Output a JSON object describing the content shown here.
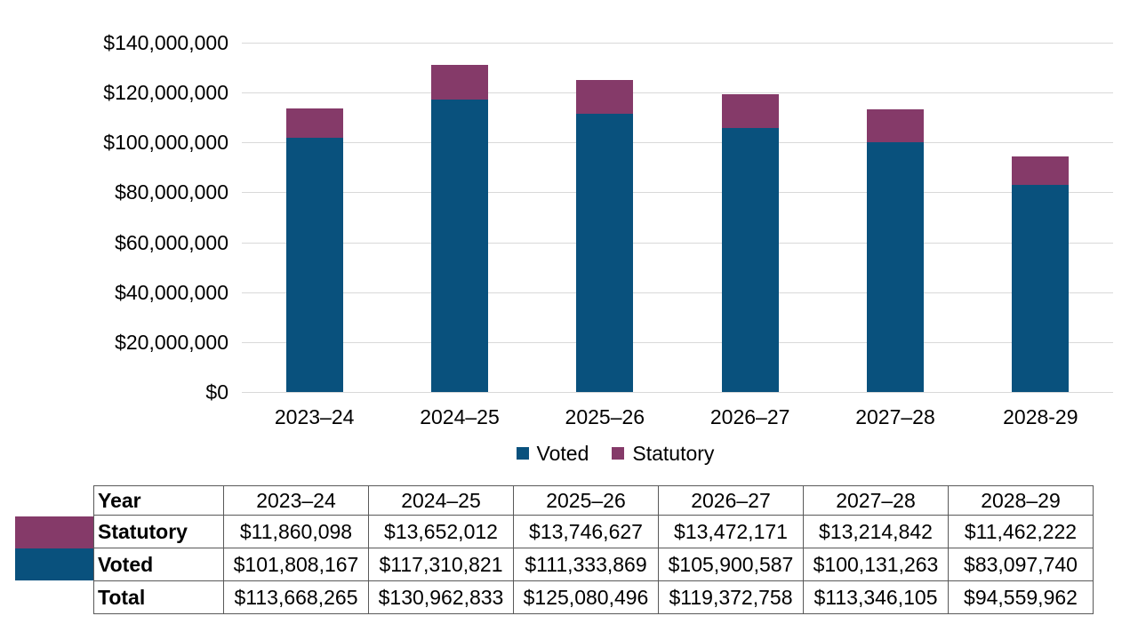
{
  "colors": {
    "voted": "#09517D",
    "statutory": "#853A69",
    "gridline": "#D9D9D9",
    "table_border": "#595959",
    "text": "#000000",
    "background": "#FFFFFF"
  },
  "chart_data": {
    "type": "bar",
    "stacked": true,
    "title": "",
    "xlabel": "",
    "ylabel": "",
    "grid": "horizontal",
    "ylim": [
      0,
      140000000
    ],
    "categories": [
      "2023–24",
      "2024–25",
      "2025–26",
      "2026–27",
      "2027–28",
      "2028-29"
    ],
    "series": [
      {
        "name": "Voted",
        "color": "#09517D",
        "values": [
          101808167,
          117310821,
          111333869,
          105900587,
          100131263,
          83097740
        ]
      },
      {
        "name": "Statutory",
        "color": "#853A69",
        "values": [
          11860098,
          13652012,
          13746627,
          13472171,
          13214842,
          11462222
        ]
      }
    ],
    "totals": [
      113668265,
      130962833,
      125080496,
      119372758,
      113346105,
      94559962
    ],
    "yticks": [
      {
        "value": 0,
        "label": "$0"
      },
      {
        "value": 20000000,
        "label": "$20,000,000"
      },
      {
        "value": 40000000,
        "label": "$40,000,000"
      },
      {
        "value": 60000000,
        "label": "$60,000,000"
      },
      {
        "value": 80000000,
        "label": "$80,000,000"
      },
      {
        "value": 100000000,
        "label": "$100,000,000"
      },
      {
        "value": 120000000,
        "label": "$120,000,000"
      },
      {
        "value": 140000000,
        "label": "$140,000,000"
      }
    ],
    "legend": {
      "position": "bottom",
      "items": [
        "Voted",
        "Statutory"
      ]
    }
  },
  "table": {
    "rows": [
      {
        "label": "Year",
        "cells": [
          "2023–24",
          "2024–25",
          "2025–26",
          "2026–27",
          "2027–28",
          "2028–29"
        ]
      },
      {
        "label": "Statutory",
        "cells": [
          "$11,860,098",
          "$13,652,012",
          "$13,746,627",
          "$13,472,171",
          "$13,214,842",
          "$11,462,222"
        ]
      },
      {
        "label": "Voted",
        "cells": [
          "$101,808,167",
          "$117,310,821",
          "$111,333,869",
          "$105,900,587",
          "$100,131,263",
          "$83,097,740"
        ]
      },
      {
        "label": "Total",
        "cells": [
          "$113,668,265",
          "$130,962,833",
          "$125,080,496",
          "$119,372,758",
          "$113,346,105",
          "$94,559,962"
        ]
      }
    ]
  }
}
